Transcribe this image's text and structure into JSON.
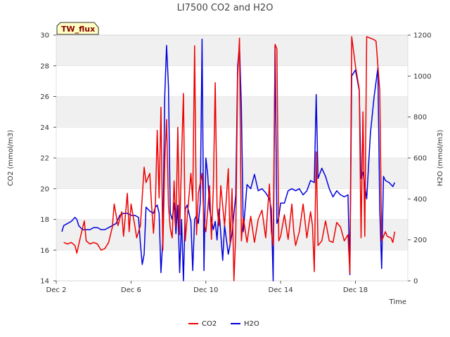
{
  "chart_data": {
    "type": "line",
    "title": "LI7500 CO2 and H2O",
    "xlabel": "Time",
    "ylabel_left": "CO2 (mmol/m3)",
    "ylabel_right": "H2O (mmol/m3)",
    "xlim": [
      2,
      20.8
    ],
    "ylim_left": [
      14,
      30
    ],
    "ylim_right": [
      0,
      1200
    ],
    "x_ticks": [
      2,
      6,
      10,
      14,
      18
    ],
    "x_tick_labels": [
      "Dec 2",
      "Dec 6",
      "Dec 10",
      "Dec 14",
      "Dec 18"
    ],
    "y_left_ticks": [
      14,
      16,
      18,
      20,
      22,
      24,
      26,
      28,
      30
    ],
    "y_right_ticks": [
      0,
      200,
      400,
      600,
      800,
      1000,
      1200
    ],
    "badge": "TW_flux",
    "legend_position": "bottom",
    "series": [
      {
        "name": "CO2",
        "axis": "left",
        "color": "#ee0000",
        "points": [
          [
            2.4,
            16.5
          ],
          [
            2.6,
            16.4
          ],
          [
            2.8,
            16.5
          ],
          [
            3.0,
            16.3
          ],
          [
            3.1,
            15.8
          ],
          [
            3.3,
            16.9
          ],
          [
            3.5,
            17.9
          ],
          [
            3.6,
            16.6
          ],
          [
            3.8,
            16.4
          ],
          [
            4.0,
            16.5
          ],
          [
            4.2,
            16.4
          ],
          [
            4.4,
            16.0
          ],
          [
            4.6,
            16.1
          ],
          [
            4.8,
            16.5
          ],
          [
            5.0,
            17.5
          ],
          [
            5.1,
            19.0
          ],
          [
            5.3,
            17.6
          ],
          [
            5.5,
            18.5
          ],
          [
            5.6,
            16.9
          ],
          [
            5.8,
            19.7
          ],
          [
            5.9,
            17.2
          ],
          [
            6.0,
            19.0
          ],
          [
            6.2,
            17.6
          ],
          [
            6.3,
            16.8
          ],
          [
            6.5,
            17.6
          ],
          [
            6.7,
            21.4
          ],
          [
            6.8,
            20.4
          ],
          [
            7.0,
            21.0
          ],
          [
            7.1,
            18.9
          ],
          [
            7.2,
            17.1
          ],
          [
            7.3,
            19.0
          ],
          [
            7.4,
            23.8
          ],
          [
            7.5,
            19.4
          ],
          [
            7.6,
            25.3
          ],
          [
            7.7,
            16.0
          ],
          [
            7.8,
            21.7
          ],
          [
            7.9,
            24.5
          ],
          [
            8.0,
            18.9
          ],
          [
            8.1,
            17.4
          ],
          [
            8.2,
            16.8
          ],
          [
            8.3,
            20.5
          ],
          [
            8.4,
            17.5
          ],
          [
            8.5,
            24.0
          ],
          [
            8.6,
            17.0
          ],
          [
            8.7,
            22.0
          ],
          [
            8.8,
            26.2
          ],
          [
            8.9,
            16.6
          ],
          [
            9.0,
            18.1
          ],
          [
            9.2,
            21.0
          ],
          [
            9.3,
            19.2
          ],
          [
            9.4,
            29.3
          ],
          [
            9.5,
            17.0
          ],
          [
            9.6,
            19.7
          ],
          [
            9.8,
            21.0
          ],
          [
            9.9,
            17.8
          ],
          [
            10.0,
            17.2
          ],
          [
            10.1,
            18.6
          ],
          [
            10.2,
            20.2
          ],
          [
            10.3,
            16.7
          ],
          [
            10.4,
            20.0
          ],
          [
            10.5,
            26.9
          ],
          [
            10.6,
            18.8
          ],
          [
            10.7,
            17.6
          ],
          [
            10.8,
            20.2
          ],
          [
            11.0,
            17.6
          ],
          [
            11.2,
            21.3
          ],
          [
            11.3,
            16.4
          ],
          [
            11.4,
            20.0
          ],
          [
            11.5,
            14.0
          ],
          [
            11.6,
            17.0
          ],
          [
            11.7,
            27.3
          ],
          [
            11.8,
            29.8
          ],
          [
            11.9,
            16.6
          ],
          [
            12.0,
            18.1
          ],
          [
            12.2,
            16.5
          ],
          [
            12.4,
            18.2
          ],
          [
            12.6,
            16.5
          ],
          [
            12.8,
            18.0
          ],
          [
            13.0,
            18.6
          ],
          [
            13.2,
            16.8
          ],
          [
            13.4,
            20.3
          ],
          [
            13.5,
            17.2
          ],
          [
            13.6,
            16.3
          ],
          [
            13.7,
            29.4
          ],
          [
            13.8,
            29.1
          ],
          [
            13.9,
            16.6
          ],
          [
            14.0,
            16.9
          ],
          [
            14.2,
            18.3
          ],
          [
            14.4,
            16.7
          ],
          [
            14.6,
            19.0
          ],
          [
            14.7,
            17.2
          ],
          [
            14.8,
            16.3
          ],
          [
            15.0,
            17.2
          ],
          [
            15.2,
            19.0
          ],
          [
            15.4,
            16.8
          ],
          [
            15.6,
            18.5
          ],
          [
            15.7,
            17.6
          ],
          [
            15.8,
            14.6
          ],
          [
            15.9,
            22.4
          ],
          [
            16.0,
            16.3
          ],
          [
            16.2,
            16.6
          ],
          [
            16.4,
            17.9
          ],
          [
            16.6,
            16.6
          ],
          [
            16.8,
            16.5
          ],
          [
            17.0,
            17.8
          ],
          [
            17.2,
            17.5
          ],
          [
            17.4,
            16.6
          ],
          [
            17.6,
            17.0
          ],
          [
            17.7,
            14.5
          ],
          [
            17.8,
            29.9
          ],
          [
            18.0,
            28.0
          ],
          [
            18.2,
            26.5
          ],
          [
            18.3,
            16.8
          ],
          [
            18.4,
            25.0
          ],
          [
            18.5,
            16.9
          ],
          [
            18.6,
            29.9
          ],
          [
            19.0,
            29.7
          ],
          [
            19.1,
            29.6
          ],
          [
            19.3,
            26.4
          ],
          [
            19.4,
            16.6
          ],
          [
            19.6,
            17.2
          ],
          [
            19.7,
            16.9
          ],
          [
            19.9,
            16.8
          ],
          [
            20.0,
            16.5
          ],
          [
            20.1,
            17.2
          ]
        ]
      },
      {
        "name": "H2O",
        "axis": "right",
        "color": "#0000dd",
        "points": [
          [
            2.3,
            240
          ],
          [
            2.4,
            270
          ],
          [
            2.6,
            280
          ],
          [
            2.8,
            290
          ],
          [
            3.0,
            310
          ],
          [
            3.1,
            300
          ],
          [
            3.2,
            270
          ],
          [
            3.4,
            250
          ],
          [
            3.6,
            250
          ],
          [
            3.8,
            250
          ],
          [
            4.0,
            260
          ],
          [
            4.2,
            260
          ],
          [
            4.4,
            250
          ],
          [
            4.6,
            250
          ],
          [
            4.8,
            260
          ],
          [
            5.0,
            270
          ],
          [
            5.2,
            280
          ],
          [
            5.4,
            320
          ],
          [
            5.6,
            330
          ],
          [
            5.8,
            330
          ],
          [
            6.0,
            320
          ],
          [
            6.2,
            320
          ],
          [
            6.4,
            310
          ],
          [
            6.5,
            180
          ],
          [
            6.6,
            80
          ],
          [
            6.7,
            130
          ],
          [
            6.8,
            360
          ],
          [
            7.0,
            340
          ],
          [
            7.2,
            330
          ],
          [
            7.3,
            360
          ],
          [
            7.4,
            370
          ],
          [
            7.5,
            330
          ],
          [
            7.6,
            40
          ],
          [
            7.7,
            200
          ],
          [
            7.8,
            900
          ],
          [
            7.9,
            1150
          ],
          [
            8.0,
            950
          ],
          [
            8.1,
            330
          ],
          [
            8.2,
            300
          ],
          [
            8.3,
            380
          ],
          [
            8.4,
            230
          ],
          [
            8.5,
            370
          ],
          [
            8.6,
            40
          ],
          [
            8.7,
            300
          ],
          [
            8.8,
            0
          ],
          [
            8.9,
            350
          ],
          [
            9.0,
            370
          ],
          [
            9.2,
            290
          ],
          [
            9.3,
            50
          ],
          [
            9.4,
            300
          ],
          [
            9.5,
            320
          ],
          [
            9.6,
            280
          ],
          [
            9.7,
            380
          ],
          [
            9.8,
            1180
          ],
          [
            9.9,
            50
          ],
          [
            10.0,
            600
          ],
          [
            10.1,
            520
          ],
          [
            10.2,
            350
          ],
          [
            10.3,
            300
          ],
          [
            10.4,
            250
          ],
          [
            10.5,
            290
          ],
          [
            10.6,
            200
          ],
          [
            10.7,
            350
          ],
          [
            10.8,
            230
          ],
          [
            10.9,
            100
          ],
          [
            11.0,
            270
          ],
          [
            11.2,
            130
          ],
          [
            11.4,
            230
          ],
          [
            11.6,
            420
          ],
          [
            11.7,
            1050
          ],
          [
            11.8,
            1150
          ],
          [
            11.9,
            850
          ],
          [
            12.0,
            240
          ],
          [
            12.2,
            470
          ],
          [
            12.4,
            450
          ],
          [
            12.6,
            520
          ],
          [
            12.8,
            440
          ],
          [
            13.0,
            450
          ],
          [
            13.2,
            430
          ],
          [
            13.4,
            400
          ],
          [
            13.5,
            350
          ],
          [
            13.6,
            0
          ],
          [
            13.7,
            1150
          ],
          [
            13.8,
            280
          ],
          [
            13.9,
            310
          ],
          [
            14.0,
            380
          ],
          [
            14.2,
            380
          ],
          [
            14.4,
            440
          ],
          [
            14.6,
            450
          ],
          [
            14.8,
            440
          ],
          [
            15.0,
            450
          ],
          [
            15.2,
            420
          ],
          [
            15.4,
            440
          ],
          [
            15.6,
            490
          ],
          [
            15.8,
            480
          ],
          [
            15.9,
            910
          ],
          [
            16.0,
            500
          ],
          [
            16.2,
            550
          ],
          [
            16.4,
            510
          ],
          [
            16.6,
            450
          ],
          [
            16.8,
            410
          ],
          [
            17.0,
            440
          ],
          [
            17.2,
            420
          ],
          [
            17.4,
            410
          ],
          [
            17.6,
            420
          ],
          [
            17.7,
            30
          ],
          [
            17.8,
            1000
          ],
          [
            18.0,
            1030
          ],
          [
            18.2,
            930
          ],
          [
            18.3,
            500
          ],
          [
            18.4,
            530
          ],
          [
            18.6,
            400
          ],
          [
            18.8,
            720
          ],
          [
            19.0,
            900
          ],
          [
            19.2,
            1040
          ],
          [
            19.3,
            350
          ],
          [
            19.4,
            60
          ],
          [
            19.5,
            510
          ],
          [
            19.6,
            490
          ],
          [
            19.8,
            480
          ],
          [
            20.0,
            460
          ],
          [
            20.1,
            480
          ]
        ]
      }
    ]
  }
}
